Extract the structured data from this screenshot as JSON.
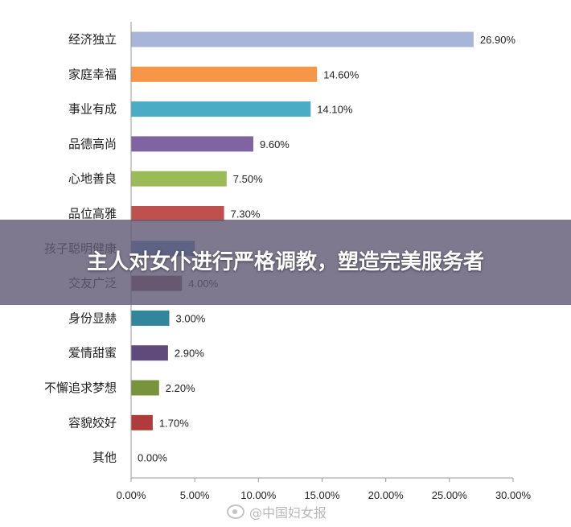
{
  "chart_data": {
    "type": "bar",
    "orientation": "horizontal",
    "categories": [
      "经济独立",
      "家庭幸福",
      "事业有成",
      "品德高尚",
      "心地善良",
      "品位高雅",
      "孩子聪明健康",
      "交友广泛",
      "身份显赫",
      "爱情甜蜜",
      "不懈追求梦想",
      "容貌姣好",
      "其他"
    ],
    "values": [
      26.9,
      14.6,
      14.1,
      9.6,
      7.5,
      7.3,
      5.0,
      4.0,
      3.0,
      2.9,
      2.2,
      1.7,
      0.0
    ],
    "value_labels": [
      "26.90%",
      "14.60%",
      "14.10%",
      "9.60%",
      "7.50%",
      "7.30%",
      "",
      "4.00%",
      "3.00%",
      "2.90%",
      "2.20%",
      "1.70%",
      "0.00%"
    ],
    "colors": [
      "#a9b4d9",
      "#f79646",
      "#4bacc6",
      "#8064a2",
      "#9bbb59",
      "#c0504d",
      "#4f81bd",
      "#7a5050",
      "#31859c",
      "#604a7b",
      "#77933c",
      "#b03b3b",
      "#4f81bd"
    ],
    "xlim": [
      0,
      30
    ],
    "x_ticks": [
      0,
      5,
      10,
      15,
      20,
      25,
      30
    ],
    "x_tick_labels": [
      "0.00%",
      "5.00%",
      "10.00%",
      "15.00%",
      "20.00%",
      "25.00%",
      "30.00%"
    ],
    "axis_color": "#999999",
    "grid": false
  },
  "overlay": {
    "title": "主人对女仆进行严格调教，塑造完美服务者"
  },
  "watermark": {
    "text": "@中国妇女报",
    "icon": "weibo-icon"
  }
}
